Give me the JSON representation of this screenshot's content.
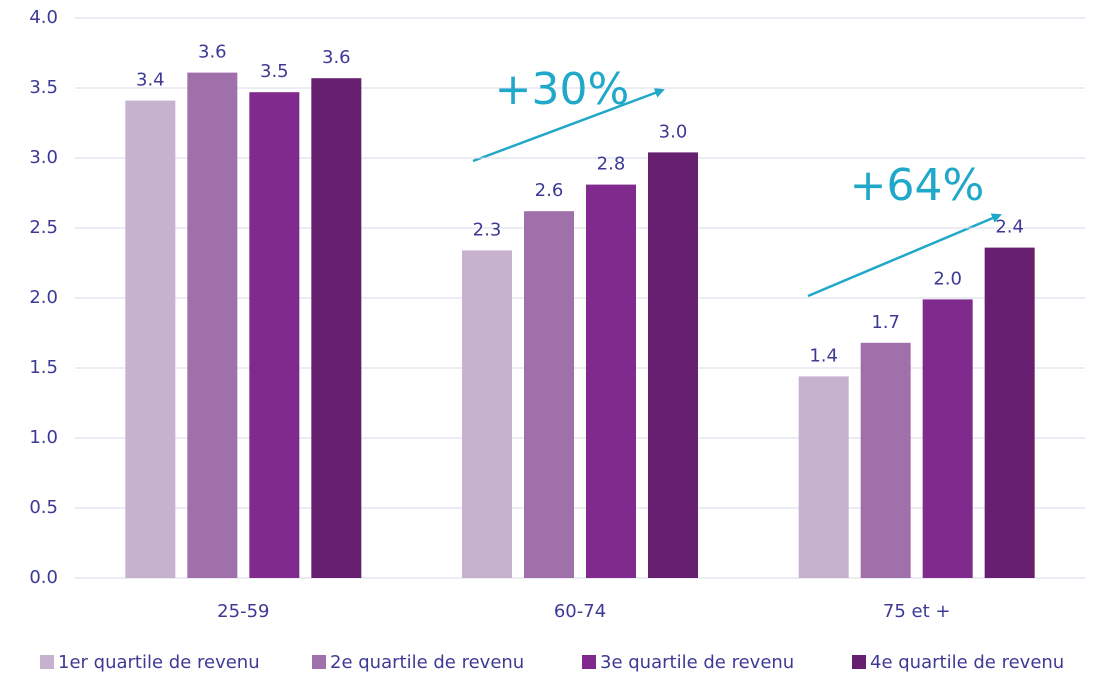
{
  "chart_data": {
    "type": "bar",
    "categories": [
      "25-59",
      "60-74",
      "75 et +"
    ],
    "series": [
      {
        "name": "1er quartile de revenu",
        "color": "#c6b1cf",
        "values": [
          3.41,
          2.34,
          1.44
        ],
        "value_labels": [
          "3.4",
          "2.3",
          "1.4"
        ]
      },
      {
        "name": "2e quartile de revenu",
        "color": "#a070ab",
        "values": [
          3.61,
          2.62,
          1.68
        ],
        "value_labels": [
          "3.6",
          "2.6",
          "1.7"
        ]
      },
      {
        "name": "3e quartile de revenu",
        "color": "#802a8e",
        "values": [
          3.47,
          2.81,
          1.99
        ],
        "value_labels": [
          "3.5",
          "2.8",
          "2.0"
        ]
      },
      {
        "name": "4e quartile de revenu",
        "color": "#66206f",
        "values": [
          3.57,
          3.04,
          2.36
        ],
        "value_labels": [
          "3.6",
          "3.0",
          "2.4"
        ]
      }
    ],
    "ylim": [
      0,
      4
    ],
    "yticks": [
      {
        "value": 0,
        "label": "0.0"
      },
      {
        "value": 0.5,
        "label": "0.5"
      },
      {
        "value": 1,
        "label": "1.0"
      },
      {
        "value": 1.5,
        "label": "1.5"
      },
      {
        "value": 2,
        "label": "2.0"
      },
      {
        "value": 2.5,
        "label": "2.5"
      },
      {
        "value": 3,
        "label": "3.0"
      },
      {
        "value": 3.5,
        "label": "3.5"
      },
      {
        "value": 4,
        "label": "4.0"
      }
    ],
    "grid": true,
    "legend": "bottom",
    "annotations": [
      "+30%",
      "+64%"
    ]
  }
}
